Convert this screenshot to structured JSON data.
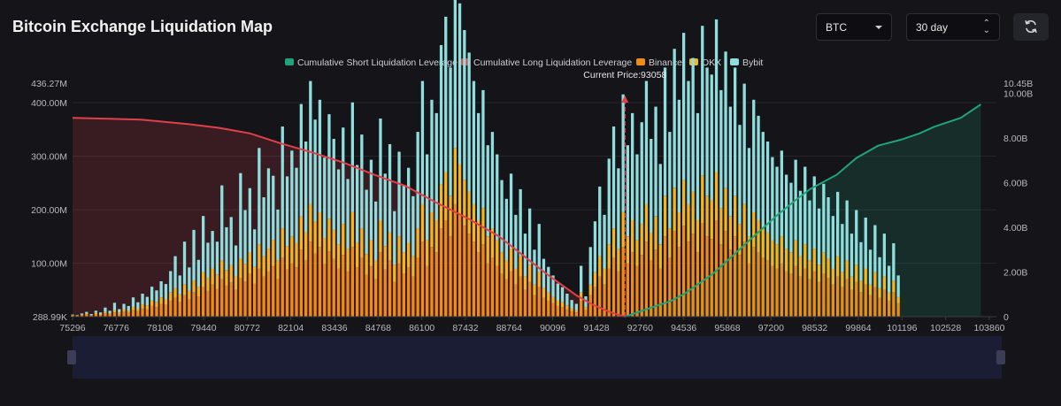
{
  "header": {
    "title": "Bitcoin Exchange Liquidation Map",
    "coin_select": "BTC",
    "period_select": "30 day",
    "refresh_icon": "refresh-icon"
  },
  "colors": {
    "short_cumulative": "#1fa37b",
    "long_cumulative": "#e0404a",
    "binance": "#ef8b17",
    "okx": "#f3b622",
    "bybit": "#8fdedd",
    "background": "#141419"
  },
  "chart_data": {
    "type": "bar",
    "title": "Bitcoin Exchange Liquidation Map",
    "legend": {
      "placement": "top-center",
      "items": [
        "Cumulative Short Liquidation Leverage",
        "Cumulative Long Liquidation Leverage",
        "Binance",
        "OKX",
        "Bybit"
      ]
    },
    "current_price_label": "Current Price:93058",
    "current_price": 93058,
    "x_tick_labels": [
      "75296",
      "76776",
      "78108",
      "79440",
      "80772",
      "82104",
      "83436",
      "84768",
      "86100",
      "87432",
      "88764",
      "90096",
      "91428",
      "92760",
      "94536",
      "95868",
      "97200",
      "98532",
      "99864",
      "101196",
      "102528",
      "103860"
    ],
    "x_range": [
      75296,
      105000
    ],
    "left_axis": {
      "unit": "USD",
      "range": [
        288990,
        436270000
      ],
      "ticks": [
        288990,
        100000000,
        200000000,
        300000000,
        400000000,
        436270000
      ],
      "tick_labels": [
        "288.99K",
        "100.00M",
        "200.00M",
        "300.00M",
        "400.00M",
        "436.27M"
      ]
    },
    "right_axis": {
      "unit": "USD",
      "range": [
        0,
        10450000000
      ],
      "ticks": [
        0,
        2000000000,
        4000000000,
        6000000000,
        8000000000,
        10000000000,
        10450000000
      ],
      "tick_labels": [
        "0",
        "2.00B",
        "4.00B",
        "6.00B",
        "8.00B",
        "10.00B",
        "10.45B"
      ]
    },
    "cumulative_long": {
      "name": "Cumulative Long Liquidation Leverage",
      "x": [
        75296,
        77500,
        79000,
        80000,
        81000,
        82000,
        83000,
        84000,
        85000,
        86000,
        87000,
        88000,
        89000,
        89500,
        90000,
        90500,
        91000,
        91500,
        92000,
        92500,
        92760,
        93058
      ],
      "y": [
        8900000000.0,
        8820000000.0,
        8620000000.0,
        8450000000.0,
        8200000000.0,
        7750000000.0,
        7350000000.0,
        6900000000.0,
        6350000000.0,
        5850000000.0,
        5100000000.0,
        4400000000.0,
        3600000000.0,
        3050000000.0,
        2500000000.0,
        1950000000.0,
        1450000000.0,
        950000000.0,
        550000000.0,
        250000000.0,
        120000000.0,
        0
      ]
    },
    "cumulative_short": {
      "name": "Cumulative Short Liquidation Leverage",
      "x": [
        93058,
        94000,
        94536,
        95000,
        95868,
        96500,
        97200,
        98000,
        98532,
        99000,
        99864,
        100500,
        101196,
        102000,
        102528,
        103000,
        103860,
        104500
      ],
      "y": [
        0,
        450000000.0,
        700000000.0,
        1050000000.0,
        1900000000.0,
        2700000000.0,
        3600000000.0,
        4600000000.0,
        5200000000.0,
        5700000000.0,
        6350000000.0,
        7100000000.0,
        7650000000.0,
        7950000000.0,
        8200000000.0,
        8500000000.0,
        8900000000.0,
        9500000000.0
      ]
    },
    "bars": {
      "x_start": 75296,
      "x_step": 150,
      "binance": [
        2,
        1,
        3,
        4,
        2,
        5,
        3,
        6,
        4,
        8,
        5,
        9,
        7,
        12,
        10,
        15,
        14,
        20,
        18,
        24,
        22,
        30,
        35,
        28,
        40,
        32,
        45,
        38,
        55,
        48,
        60,
        52,
        70,
        58,
        64,
        50,
        72,
        66,
        80,
        62,
        90,
        75,
        85,
        95,
        70,
        110,
        88,
        100,
        92,
        125,
        105,
        140,
        118,
        130,
        98,
        122,
        108,
        90,
        115,
        85,
        130,
        92,
        110,
        78,
        95,
        70,
        120,
        88,
        105,
        65,
        100,
        80,
        92,
        75,
        110,
        140,
        95,
        130,
        120,
        165,
        180,
        150,
        210,
        190,
        170,
        155,
        140,
        120,
        135,
        100,
        110,
        95,
        80,
        70,
        85,
        60,
        75,
        50,
        65,
        40,
        55,
        35,
        30,
        25,
        20,
        18,
        14,
        10,
        8,
        30,
        12,
        40,
        55,
        75,
        60,
        90,
        110,
        85,
        130,
        100,
        120,
        95,
        115,
        140,
        105,
        125,
        90,
        150,
        110,
        160,
        130,
        170,
        140,
        155,
        120,
        175,
        150,
        145,
        180,
        135,
        160,
        125,
        150,
        115,
        140,
        100,
        130,
        120,
        110,
        105,
        95,
        90,
        100,
        85,
        80,
        95,
        75,
        90,
        70,
        85,
        65,
        80,
        72,
        60,
        75,
        55,
        70,
        50,
        65,
        45,
        60,
        40,
        55,
        35,
        50,
        30,
        45,
        25
      ],
      "okx": [
        1,
        1,
        1,
        2,
        1,
        2,
        2,
        3,
        2,
        4,
        3,
        5,
        4,
        6,
        5,
        8,
        7,
        10,
        9,
        12,
        11,
        15,
        18,
        14,
        20,
        16,
        22,
        18,
        28,
        24,
        30,
        26,
        35,
        29,
        32,
        25,
        36,
        33,
        40,
        31,
        45,
        38,
        42,
        48,
        35,
        55,
        44,
        50,
        46,
        62,
        52,
        70,
        60,
        65,
        49,
        61,
        54,
        45,
        58,
        42,
        65,
        46,
        55,
        39,
        48,
        35,
        60,
        44,
        52,
        32,
        50,
        40,
        46,
        38,
        55,
        70,
        48,
        65,
        60,
        82,
        90,
        75,
        105,
        95,
        85,
        78,
        70,
        60,
        68,
        50,
        55,
        48,
        40,
        35,
        42,
        30,
        38,
        25,
        32,
        20,
        28,
        18,
        15,
        12,
        10,
        9,
        7,
        5,
        4,
        15,
        6,
        20,
        28,
        38,
        30,
        45,
        55,
        42,
        65,
        50,
        60,
        48,
        58,
        70,
        52,
        62,
        45,
        75,
        55,
        80,
        65,
        85,
        70,
        78,
        60,
        88,
        75,
        72,
        90,
        68,
        80,
        62,
        75,
        58,
        70,
        50,
        65,
        60,
        55,
        52,
        48,
        45,
        50,
        42,
        40,
        48,
        38,
        45,
        35,
        42,
        32,
        40,
        36,
        30,
        38,
        28,
        35,
        25,
        32,
        22,
        30,
        20,
        28,
        18,
        25,
        15,
        22,
        12
      ],
      "bybit": [
        1,
        1,
        2,
        3,
        2,
        4,
        3,
        8,
        5,
        14,
        6,
        10,
        9,
        18,
        12,
        20,
        16,
        26,
        22,
        30,
        28,
        40,
        60,
        35,
        80,
        44,
        95,
        50,
        105,
        66,
        70,
        62,
        140,
        80,
        90,
        58,
        160,
        100,
        120,
        70,
        180,
        110,
        150,
        120,
        95,
        190,
        130,
        160,
        140,
        210,
        170,
        230,
        190,
        210,
        150,
        195,
        170,
        140,
        180,
        130,
        205,
        145,
        175,
        120,
        150,
        110,
        190,
        135,
        165,
        100,
        158,
        125,
        140,
        112,
        180,
        230,
        160,
        210,
        200,
        260,
        290,
        240,
        320,
        300,
        280,
        260,
        230,
        200,
        220,
        170,
        180,
        160,
        135,
        115,
        140,
        100,
        125,
        80,
        105,
        65,
        90,
        55,
        48,
        40,
        32,
        28,
        22,
        16,
        12,
        50,
        20,
        70,
        95,
        130,
        100,
        160,
        190,
        150,
        220,
        170,
        200,
        160,
        190,
        230,
        175,
        205,
        150,
        240,
        180,
        260,
        210,
        275,
        230,
        250,
        200,
        280,
        240,
        235,
        285,
        220,
        255,
        205,
        240,
        185,
        225,
        165,
        210,
        195,
        180,
        170,
        155,
        145,
        160,
        138,
        130,
        150,
        122,
        145,
        112,
        135,
        105,
        128,
        115,
        98,
        120,
        90,
        112,
        80,
        102,
        72,
        95,
        65,
        88,
        58,
        80,
        50,
        70,
        40
      ]
    }
  }
}
